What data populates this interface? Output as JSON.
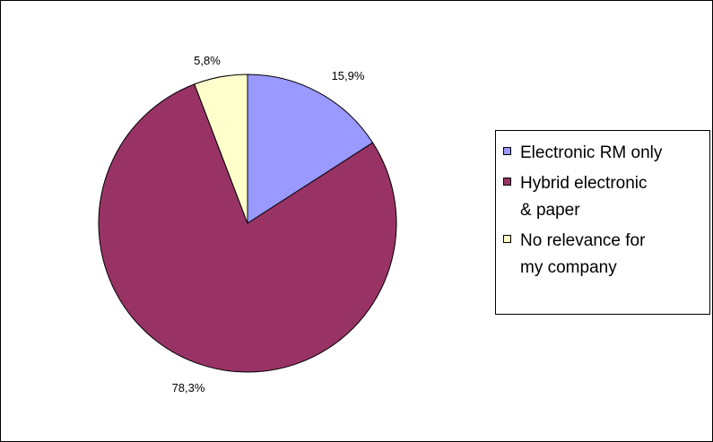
{
  "chart_data": {
    "type": "pie",
    "title": "",
    "categories": [
      "Electronic RM only",
      "Hybrid electronic & paper",
      "No relevance for my company"
    ],
    "values": [
      15.9,
      78.3,
      5.8
    ],
    "data_labels": [
      "15,9%",
      "78,3%",
      "5,8%"
    ],
    "colors": [
      "#9999FF",
      "#993366",
      "#FFFFCC"
    ],
    "start_angle_deg": 0,
    "direction": "clockwise",
    "legend_position": "right",
    "legend": [
      {
        "label_lines": [
          "Electronic RM only"
        ],
        "color": "#9999FF"
      },
      {
        "label_lines": [
          "Hybrid electronic",
          "& paper"
        ],
        "color": "#993366"
      },
      {
        "label_lines": [
          "No relevance for",
          "my company"
        ],
        "color": "#FFFFCC"
      }
    ]
  }
}
